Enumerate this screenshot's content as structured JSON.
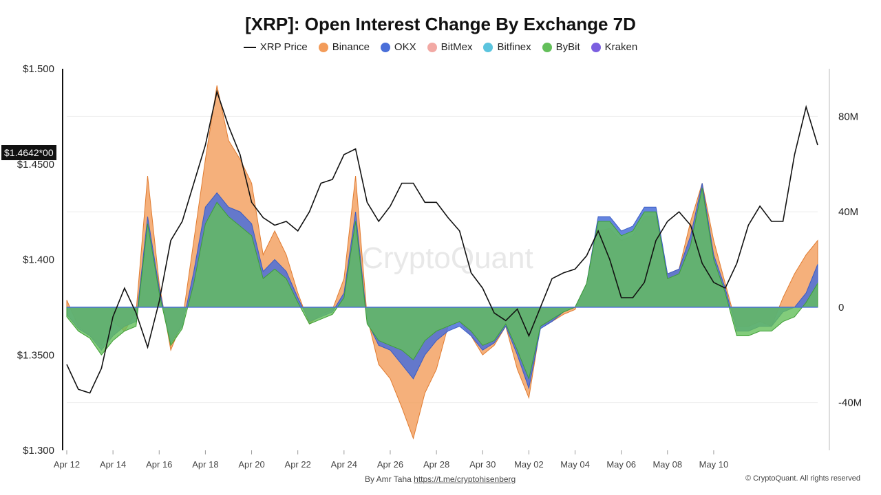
{
  "chart_data": {
    "type": "area",
    "title": "[XRP]: Open Interest Change By Exchange 7D",
    "watermark": "CryptoQuant",
    "x_ticks": [
      "Apr 12",
      "Apr 14",
      "Apr 16",
      "Apr 18",
      "Apr 20",
      "Apr 22",
      "Apr 24",
      "Apr 26",
      "Apr 28",
      "Apr 30",
      "May 02",
      "May 04",
      "May 06",
      "May 08",
      "May 10"
    ],
    "y_left": {
      "ticks": [
        "$1.300",
        "$1.3500",
        "$1.400",
        "$1.4500",
        "$1.500"
      ],
      "range": [
        1.3,
        1.5
      ]
    },
    "y_right": {
      "ticks": [
        "-40M",
        "0",
        "40M",
        "80M"
      ],
      "range": [
        -60000000,
        100000000
      ]
    },
    "current_price_label": "$1.4642*00",
    "legend": [
      {
        "name": "XRP Price",
        "color": "#111111",
        "kind": "line"
      },
      {
        "name": "Binance",
        "color": "#f39c5a",
        "kind": "dot"
      },
      {
        "name": "OKX",
        "color": "#4a6fd9",
        "kind": "dot"
      },
      {
        "name": "BitMex",
        "color": "#f2a9a4",
        "kind": "dot"
      },
      {
        "name": "Bitfinex",
        "color": "#5bc4de",
        "kind": "dot"
      },
      {
        "name": "ByBit",
        "color": "#63bf5a",
        "kind": "dot"
      },
      {
        "name": "Kraken",
        "color": "#7b5fe0",
        "kind": "dot"
      }
    ],
    "x_days": [
      0,
      0.5,
      1,
      1.5,
      2,
      2.5,
      3,
      3.5,
      4,
      4.5,
      5,
      5.5,
      6,
      6.5,
      7,
      7.5,
      8,
      8.5,
      9,
      9.5,
      10,
      10.5,
      11,
      11.5,
      12,
      12.5,
      13,
      13.5,
      14,
      14.5,
      15,
      15.5,
      16,
      16.5,
      17,
      17.5,
      18,
      18.5,
      19,
      19.5,
      20,
      20.5,
      21,
      21.5,
      22,
      22.5,
      23,
      23.5,
      24,
      24.5,
      25,
      25.5,
      26,
      26.5,
      27,
      27.5,
      28,
      28.5,
      29,
      29.5,
      30,
      30.5,
      31,
      31.5,
      32,
      32.5
    ],
    "series": [
      {
        "name": "XRP Price",
        "axis": "left",
        "values": [
          1.345,
          1.332,
          1.33,
          1.343,
          1.37,
          1.385,
          1.372,
          1.354,
          1.378,
          1.41,
          1.42,
          1.44,
          1.46,
          1.488,
          1.47,
          1.455,
          1.43,
          1.422,
          1.418,
          1.42,
          1.415,
          1.425,
          1.44,
          1.442,
          1.455,
          1.458,
          1.43,
          1.42,
          1.428,
          1.44,
          1.44,
          1.43,
          1.43,
          1.422,
          1.415,
          1.393,
          1.385,
          1.372,
          1.368,
          1.374,
          1.36,
          1.375,
          1.39,
          1.393,
          1.395,
          1.402,
          1.415,
          1.4,
          1.38,
          1.38,
          1.388,
          1.41,
          1.42,
          1.425,
          1.418,
          1.398,
          1.388,
          1.385,
          1.398,
          1.418,
          1.428,
          1.42,
          1.42,
          1.455,
          1.48,
          1.46
        ]
      },
      {
        "name": "Binance",
        "axis": "right",
        "values": [
          3,
          -8,
          -12,
          -16,
          -6,
          -10,
          -2,
          55,
          10,
          -18,
          -6,
          28,
          62,
          93,
          70,
          62,
          52,
          22,
          32,
          22,
          6,
          -7,
          -3,
          -1,
          12,
          55,
          -4,
          -24,
          -30,
          -42,
          -55,
          -36,
          -26,
          -8,
          -6,
          -12,
          -20,
          -16,
          -8,
          -26,
          -38,
          -8,
          -6,
          -3,
          -1,
          10,
          32,
          33,
          28,
          30,
          38,
          38,
          14,
          16,
          36,
          52,
          28,
          10,
          -8,
          -8,
          -6,
          -8,
          4,
          14,
          22,
          28
        ]
      },
      {
        "name": "OKX",
        "axis": "right",
        "values": [
          -3,
          -9,
          -12,
          -18,
          -12,
          -8,
          -6,
          38,
          8,
          -15,
          -8,
          15,
          42,
          48,
          42,
          40,
          35,
          15,
          20,
          15,
          4,
          -6,
          -4,
          -2,
          6,
          40,
          -6,
          -16,
          -18,
          -24,
          -30,
          -20,
          -14,
          -10,
          -8,
          -12,
          -18,
          -15,
          -8,
          -20,
          -34,
          -9,
          -6,
          -2,
          0,
          10,
          38,
          38,
          32,
          34,
          42,
          42,
          14,
          16,
          30,
          52,
          22,
          8,
          -10,
          -10,
          -8,
          -8,
          -2,
          0,
          6,
          18
        ]
      },
      {
        "name": "ByBit",
        "axis": "right",
        "values": [
          -4,
          -10,
          -13,
          -20,
          -14,
          -10,
          -8,
          35,
          6,
          -16,
          -9,
          10,
          35,
          44,
          38,
          34,
          30,
          12,
          16,
          12,
          2,
          -7,
          -5,
          -3,
          4,
          36,
          -7,
          -14,
          -16,
          -18,
          -22,
          -14,
          -10,
          -8,
          -6,
          -10,
          -16,
          -14,
          -7,
          -18,
          -30,
          -8,
          -5,
          -2,
          0,
          10,
          36,
          36,
          30,
          32,
          40,
          40,
          12,
          14,
          26,
          50,
          20,
          6,
          -12,
          -12,
          -10,
          -10,
          -6,
          -4,
          2,
          10
        ]
      }
    ]
  },
  "footer": {
    "author_prefix": "By Amr Taha",
    "author_link": "https://t.me/cryptohisenberg",
    "copyright": "© CryptoQuant. All rights reserved"
  }
}
